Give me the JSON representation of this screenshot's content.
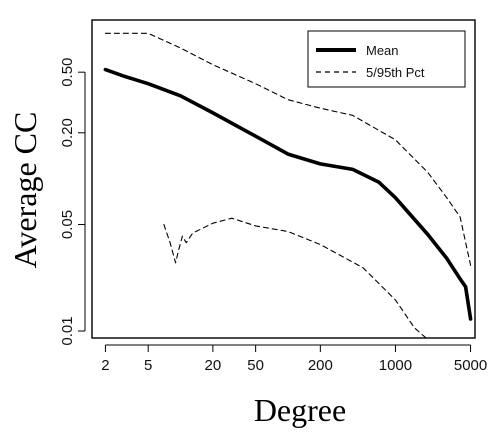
{
  "chart_data": {
    "type": "line",
    "xlabel": "Degree",
    "ylabel": "Average CC",
    "xscale": "log",
    "yscale": "log",
    "xlim": [
      1.5,
      5500
    ],
    "ylim": [
      0.009,
      1.1
    ],
    "xticks": [
      2,
      5,
      20,
      50,
      200,
      1000,
      5000
    ],
    "xtick_labels": [
      "2",
      "5",
      "20",
      "50",
      "200",
      "1000",
      "5000"
    ],
    "yticks": [
      0.01,
      0.05,
      0.2,
      0.5
    ],
    "ytick_labels": [
      "0.01",
      "0.05",
      "0.20",
      "0.50"
    ],
    "grid": false,
    "legend_position": "top-right",
    "series": [
      {
        "name": "Mean",
        "style": "solid",
        "x": [
          2,
          3,
          5,
          10,
          20,
          50,
          100,
          200,
          400,
          700,
          1000,
          2000,
          3000,
          4000,
          4500,
          5000
        ],
        "y": [
          0.52,
          0.47,
          0.42,
          0.35,
          0.27,
          0.19,
          0.145,
          0.125,
          0.115,
          0.095,
          0.075,
          0.043,
          0.03,
          0.022,
          0.0195,
          0.012
        ]
      },
      {
        "name": "5/95th Pct",
        "style": "dashed",
        "x": [
          2,
          5,
          10,
          20,
          50,
          100,
          200,
          400,
          1000,
          2000,
          3000,
          4000,
          5000
        ],
        "y": [
          0.9,
          0.9,
          0.72,
          0.56,
          0.42,
          0.33,
          0.29,
          0.26,
          0.18,
          0.11,
          0.075,
          0.056,
          0.027
        ]
      },
      {
        "name": "5/95th Pct",
        "style": "dashed",
        "x": [
          7,
          8,
          9,
          9.6,
          10.4,
          11.3,
          13,
          20,
          30,
          50,
          100,
          200,
          500,
          1000,
          1500,
          2000
        ],
        "y": [
          0.05,
          0.038,
          0.028,
          0.034,
          0.042,
          0.038,
          0.044,
          0.051,
          0.055,
          0.049,
          0.045,
          0.037,
          0.026,
          0.016,
          0.0105,
          0.0088
        ]
      }
    ]
  }
}
